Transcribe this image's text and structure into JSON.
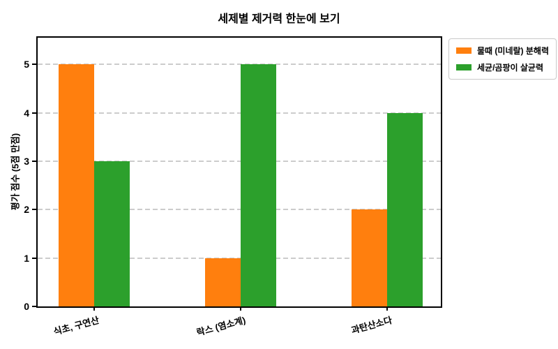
{
  "figure": {
    "background": "#ffffff"
  },
  "chart_data": {
    "type": "bar",
    "title": "세제별 제거력 한눈에 보기",
    "categories": [
      "식초, 구연산",
      "락스 (염소계)",
      "과탄산소다"
    ],
    "series": [
      {
        "name": "물때 (미네랄) 분해력",
        "color": "#ff7f0e",
        "values": [
          5,
          1,
          2
        ]
      },
      {
        "name": "세균/곰팡이 살균력",
        "color": "#2ca02c",
        "values": [
          3,
          5,
          4
        ]
      }
    ],
    "xlabel": "",
    "ylabel": "평가 점수 (5점 만점)",
    "yticks": [
      0,
      1,
      2,
      3,
      4,
      5
    ],
    "ylim": [
      0,
      5.55
    ],
    "grid": "horizontal-dashed",
    "grid_color": "#cccccc",
    "axis_color": "#000000",
    "legend_position": "outside-top-right"
  }
}
